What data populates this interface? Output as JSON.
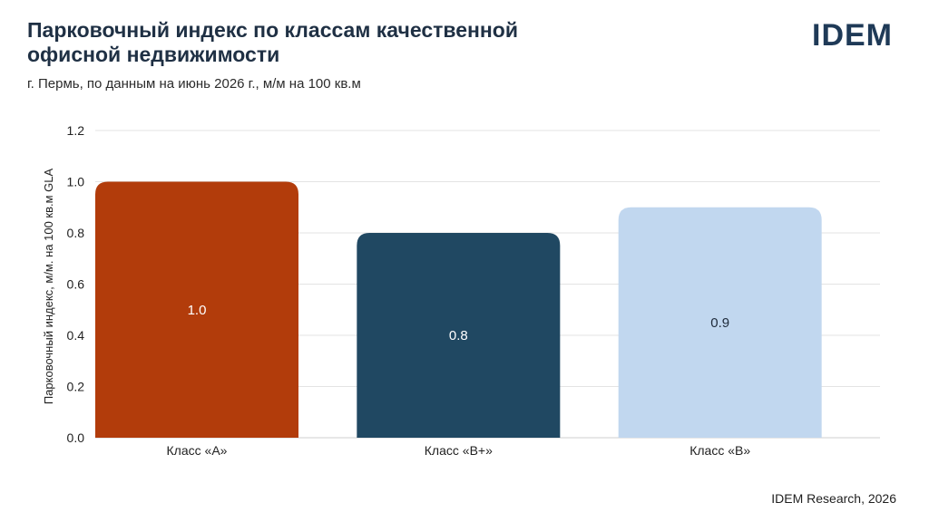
{
  "header": {
    "title": "Парковочный индекс по классам качественной офисной недвижимости",
    "subtitle": "г. Пермь, по данным на июнь 2026 г., м/м на 100 кв.м",
    "logo_text": "IDEM"
  },
  "footer": {
    "source": "IDEM Research, 2026"
  },
  "chart_data": {
    "type": "bar",
    "title": "Парковочный индекс по классам качественной офисной недвижимости",
    "subtitle": "г. Пермь, по данным на июнь 2026 г., м/м на 100 кв.м",
    "xlabel": "",
    "ylabel": "Парковочный индекс, м/м. на 100 кв.м GLA",
    "categories": [
      "Класс «А»",
      "Класс «В+»",
      "Класс «В»"
    ],
    "values": [
      1.0,
      0.8,
      0.9
    ],
    "value_labels": [
      "1.0",
      "0.8",
      "0.9"
    ],
    "colors": [
      "#b23c0b",
      "#204862",
      "#c1d7ef"
    ],
    "value_label_colors": [
      "#ffffff",
      "#ffffff",
      "#1e2a3a"
    ],
    "ylim": [
      0,
      1.2
    ],
    "yticks": [
      0,
      0.2,
      0.4,
      0.6,
      0.8,
      1.0,
      1.2
    ],
    "ytick_labels": [
      "0.0",
      "0.2",
      "0.4",
      "0.6",
      "0.8",
      "1.0",
      "1.2"
    ],
    "grid": true,
    "legend": "none"
  }
}
